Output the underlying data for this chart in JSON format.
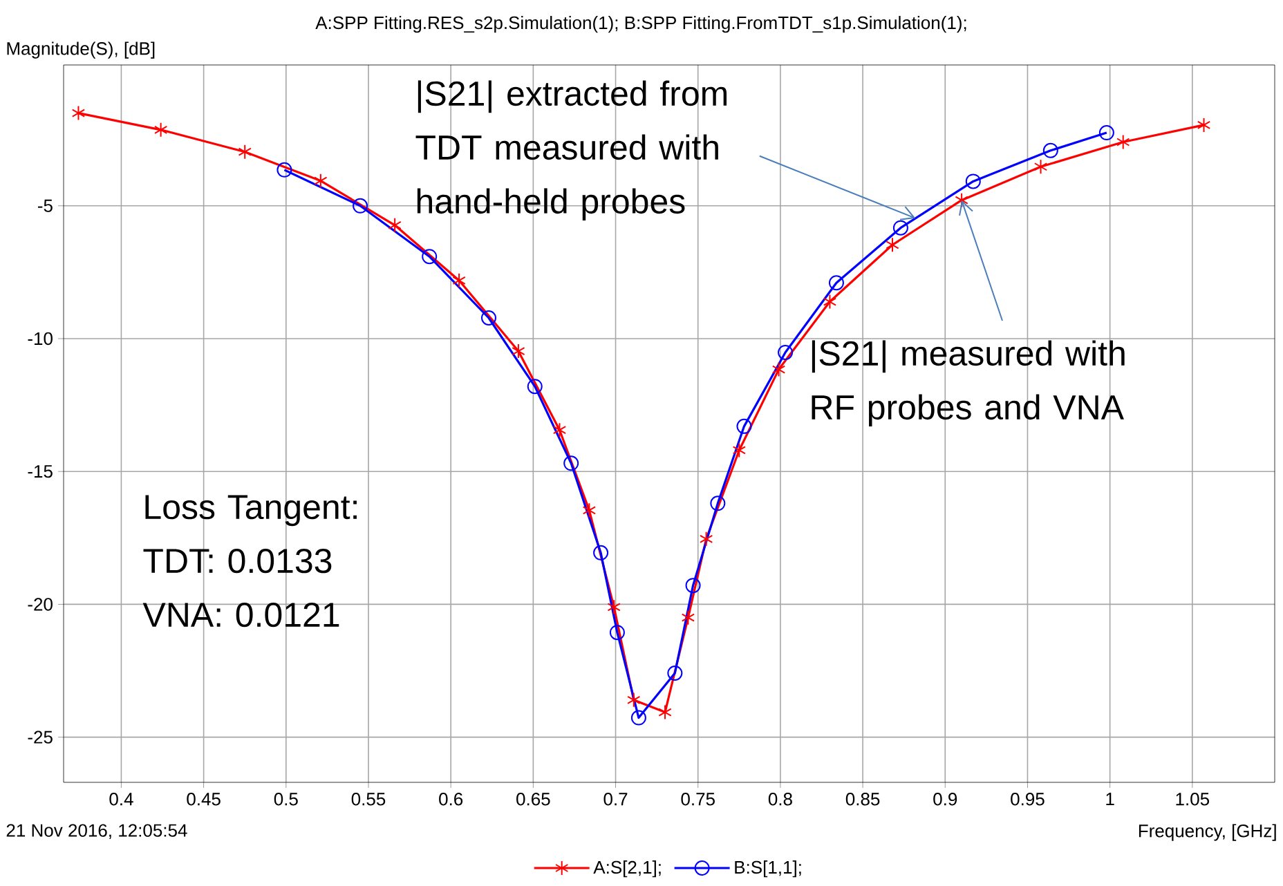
{
  "chart_data": {
    "type": "line",
    "title": "A:SPP Fitting.RES_s2p.Simulation(1); B:SPP Fitting.FromTDT_s1p.Simulation(1);",
    "ylabel": "Magnitude(S), [dB]",
    "xlabel": "Frequency, [GHz]",
    "xlim": [
      0.365,
      1.1
    ],
    "ylim": [
      -26.7,
      0.3
    ],
    "xticks": [
      0.4,
      0.45,
      0.5,
      0.55,
      0.6,
      0.65,
      0.7,
      0.75,
      0.8,
      0.85,
      0.9,
      0.95,
      1,
      1.05
    ],
    "yticks": [
      -5,
      -10,
      -15,
      -20,
      -25
    ],
    "grid": true,
    "legend": "bottom",
    "series": [
      {
        "name": "A:S[2,1];",
        "color": "#ff0000",
        "marker": "cross",
        "x": [
          0.374,
          0.424,
          0.475,
          0.521,
          0.566,
          0.605,
          0.641,
          0.666,
          0.684,
          0.699,
          0.711,
          0.73,
          0.744,
          0.755,
          0.775,
          0.799,
          0.83,
          0.868,
          0.91,
          0.958,
          1.008,
          1.057
        ],
        "values": [
          -1.51,
          -2.14,
          -2.97,
          -4.06,
          -5.73,
          -7.81,
          -10.47,
          -13.44,
          -16.46,
          -20.1,
          -23.6,
          -24.06,
          -20.5,
          -17.54,
          -14.2,
          -11.16,
          -8.61,
          -6.47,
          -4.79,
          -3.53,
          -2.6,
          -1.96
        ]
      },
      {
        "name": "B:S[1,1];",
        "color": "#0000ff",
        "marker": "circle",
        "x": [
          0.499,
          0.545,
          0.587,
          0.623,
          0.651,
          0.673,
          0.691,
          0.701,
          0.714,
          0.736,
          0.747,
          0.762,
          0.778,
          0.803,
          0.834,
          0.873,
          0.917,
          0.964,
          0.998
        ],
        "values": [
          -3.65,
          -5.0,
          -6.91,
          -9.22,
          -11.8,
          -14.69,
          -18.06,
          -21.06,
          -24.27,
          -22.59,
          -19.29,
          -16.2,
          -13.3,
          -10.52,
          -7.9,
          -5.83,
          -4.08,
          -2.92,
          -2.25
        ]
      }
    ],
    "annotations": [
      {
        "text": "|S21| extracted from TDT measured with hand-held probes",
        "x": 0.882,
        "y": -5.47
      },
      {
        "text": "|S21| measured with RF probes and VNA",
        "x": 0.91,
        "y": -4.79
      },
      "Loss Tangent: TDT: 0.0133 VNA: 0.0121",
      "21 Nov 2016, 12:05:54"
    ]
  }
}
